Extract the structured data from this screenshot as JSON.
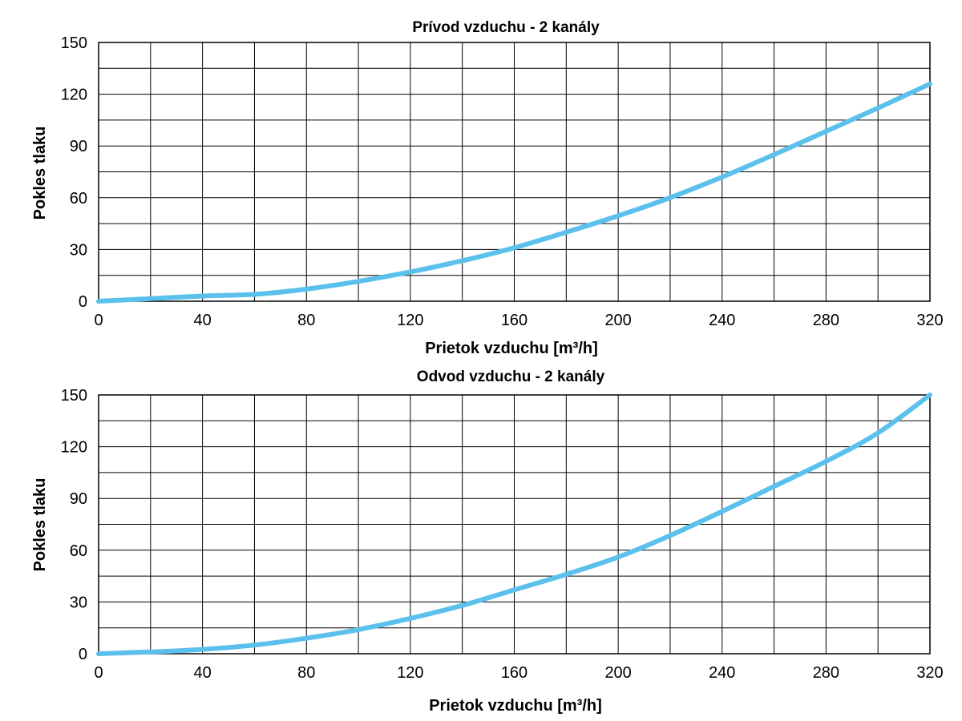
{
  "colors": {
    "curve": "#5bc1ec",
    "grid": "#000000"
  },
  "chart_data": [
    {
      "type": "line",
      "title": "Prívod vzduchu - 2 kanály",
      "xlabel": "Prietok vzduchu [m³/h]",
      "ylabel": "Pokles tlaku",
      "xlim": [
        0,
        320
      ],
      "ylim": [
        0,
        150
      ],
      "xticks": [
        "0",
        "40",
        "80",
        "120",
        "160",
        "200",
        "240",
        "280",
        "320"
      ],
      "yticks": [
        "0",
        "30",
        "60",
        "90",
        "120",
        "150"
      ],
      "grid": true,
      "x": [
        0,
        20,
        40,
        60,
        80,
        100,
        120,
        140,
        160,
        180,
        200,
        220,
        240,
        260,
        280,
        300,
        320
      ],
      "series": [
        {
          "values": [
            0,
            1.5,
            3,
            4,
            7,
            11.5,
            17,
            23.5,
            31,
            40,
            49.5,
            60,
            72,
            85,
            98.5,
            112,
            126
          ]
        }
      ]
    },
    {
      "type": "line",
      "title": "Odvod vzduchu - 2 kanály",
      "xlabel": "Prietok vzduchu [m³/h]",
      "ylabel": "Pokles tlaku",
      "xlim": [
        0,
        320
      ],
      "ylim": [
        0,
        150
      ],
      "xticks": [
        "0",
        "40",
        "80",
        "120",
        "160",
        "200",
        "240",
        "280",
        "320"
      ],
      "yticks": [
        "0",
        "30",
        "60",
        "90",
        "120",
        "150"
      ],
      "grid": true,
      "x": [
        0,
        20,
        40,
        60,
        80,
        100,
        120,
        140,
        160,
        180,
        200,
        220,
        240,
        260,
        280,
        300,
        320
      ],
      "series": [
        {
          "values": [
            0,
            1,
            2.5,
            5,
            9,
            14,
            20.5,
            28,
            37,
            46,
            56,
            68.5,
            82.5,
            97,
            111.5,
            128,
            150
          ]
        }
      ]
    }
  ]
}
